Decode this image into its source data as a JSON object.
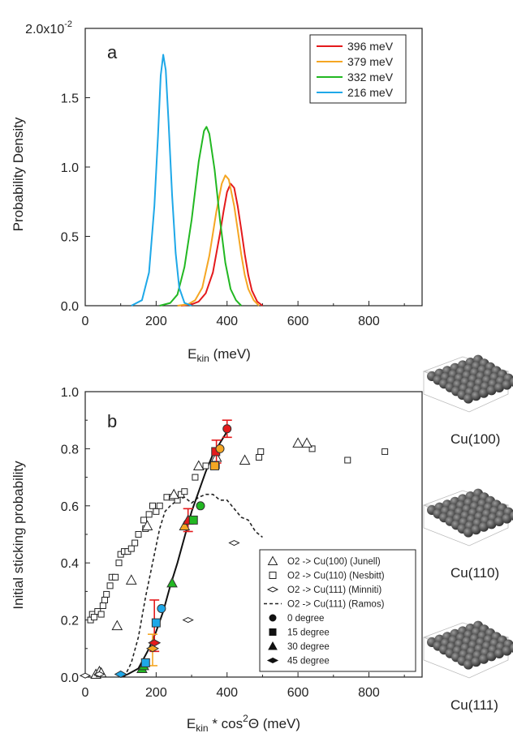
{
  "chart_data": [
    {
      "type": "line",
      "panel_label": "a",
      "xlabel_main": "E",
      "xlabel_sub": "kin",
      "xlabel_unit": " (meV)",
      "ylabel": "Probability Density",
      "xlim": [
        0,
        950
      ],
      "ylim": [
        0,
        0.02
      ],
      "x_ticks": [
        0,
        200,
        400,
        600,
        800
      ],
      "x_tick_labels": [
        "0",
        "200",
        "400",
        "600",
        "800"
      ],
      "y_ticks": [
        0,
        0.005,
        0.01,
        0.015,
        0.02
      ],
      "y_tick_labels": [
        "0.0",
        "0.5",
        "1.0",
        "1.5",
        "2.0x10"
      ],
      "y_top_exponent": "-2",
      "legend_position": "top-right",
      "series": [
        {
          "name": "396 meV",
          "color": "#e41a1c",
          "points": [
            [
              270,
              0
            ],
            [
              300,
              0.0001
            ],
            [
              320,
              0.0003
            ],
            [
              340,
              0.0009
            ],
            [
              360,
              0.0024
            ],
            [
              380,
              0.0052
            ],
            [
              390,
              0.0068
            ],
            [
              400,
              0.0082
            ],
            [
              410,
              0.0088
            ],
            [
              420,
              0.0085
            ],
            [
              430,
              0.0072
            ],
            [
              440,
              0.0055
            ],
            [
              450,
              0.0037
            ],
            [
              460,
              0.0022
            ],
            [
              470,
              0.0011
            ],
            [
              485,
              0.0003
            ],
            [
              500,
              0
            ]
          ]
        },
        {
          "name": "379 meV",
          "color": "#f5a623",
          "points": [
            [
              260,
              0
            ],
            [
              290,
              0.0001
            ],
            [
              310,
              0.0004
            ],
            [
              330,
              0.0013
            ],
            [
              350,
              0.0036
            ],
            [
              370,
              0.0068
            ],
            [
              385,
              0.0088
            ],
            [
              395,
              0.0094
            ],
            [
              405,
              0.0091
            ],
            [
              420,
              0.0072
            ],
            [
              430,
              0.0055
            ],
            [
              440,
              0.0037
            ],
            [
              450,
              0.0022
            ],
            [
              460,
              0.0012
            ],
            [
              475,
              0.0004
            ],
            [
              490,
              0
            ]
          ]
        },
        {
          "name": "332 meV",
          "color": "#22b822",
          "points": [
            [
              210,
              0
            ],
            [
              240,
              0.0002
            ],
            [
              260,
              0.0008
            ],
            [
              280,
              0.0028
            ],
            [
              300,
              0.0062
            ],
            [
              320,
              0.0104
            ],
            [
              335,
              0.0126
            ],
            [
              342,
              0.0129
            ],
            [
              350,
              0.0124
            ],
            [
              365,
              0.0098
            ],
            [
              380,
              0.0062
            ],
            [
              395,
              0.0031
            ],
            [
              410,
              0.0012
            ],
            [
              425,
              0.0004
            ],
            [
              440,
              0
            ]
          ]
        },
        {
          "name": "216 meV",
          "color": "#1ea8e8",
          "points": [
            [
              130,
              0
            ],
            [
              160,
              0.0004
            ],
            [
              180,
              0.0024
            ],
            [
              195,
              0.0072
            ],
            [
              205,
              0.0122
            ],
            [
              213,
              0.0166
            ],
            [
              220,
              0.0181
            ],
            [
              227,
              0.017
            ],
            [
              235,
              0.0132
            ],
            [
              245,
              0.008
            ],
            [
              255,
              0.0038
            ],
            [
              265,
              0.0013
            ],
            [
              280,
              0.0002
            ],
            [
              300,
              0
            ]
          ]
        }
      ]
    },
    {
      "type": "scatter",
      "panel_label": "b",
      "xlabel_main": "E",
      "xlabel_sub": "kin",
      "xlabel_mid": " * cos",
      "xlabel_sup": "2",
      "xlabel_end": "Θ   (meV)",
      "ylabel": "Initial sticking probability",
      "xlim": [
        0,
        950
      ],
      "ylim": [
        0,
        1.0
      ],
      "x_ticks": [
        0,
        200,
        400,
        600,
        800
      ],
      "x_tick_labels": [
        "0",
        "200",
        "400",
        "600",
        "800"
      ],
      "y_ticks": [
        0,
        0.2,
        0.4,
        0.6,
        0.8,
        1.0
      ],
      "y_tick_labels": [
        "0.0",
        "0.2",
        "0.4",
        "0.6",
        "0.8",
        "1.0"
      ],
      "legend_position": "bottom-right",
      "legend": [
        {
          "symbol": "open-triangle",
          "text": "O2 -> Cu(100) (Junell)"
        },
        {
          "symbol": "open-square",
          "text": "O2 -> Cu(110) (Nesbitt)"
        },
        {
          "symbol": "open-diamond",
          "text": "O2 -> Cu(111) (Minniti)"
        },
        {
          "symbol": "dashed-line",
          "text": "O2 -> Cu(111) (Ramos)"
        },
        {
          "symbol": "filled-circle",
          "text": "0 degree"
        },
        {
          "symbol": "filled-square",
          "text": "15 degree"
        },
        {
          "symbol": "filled-triangle",
          "text": "30 degree"
        },
        {
          "symbol": "filled-diamond",
          "text": "45 degree"
        }
      ],
      "junell_triangles": [
        [
          30,
          0.01
        ],
        [
          40,
          0.02
        ],
        [
          45,
          0.015
        ],
        [
          90,
          0.18
        ],
        [
          130,
          0.34
        ],
        [
          175,
          0.53
        ],
        [
          250,
          0.64
        ],
        [
          320,
          0.74
        ],
        [
          370,
          0.77
        ],
        [
          450,
          0.76
        ],
        [
          600,
          0.82
        ],
        [
          625,
          0.82
        ]
      ],
      "nesbitt_squares": [
        [
          15,
          0.2
        ],
        [
          20,
          0.22
        ],
        [
          25,
          0.21
        ],
        [
          35,
          0.23
        ],
        [
          45,
          0.22
        ],
        [
          50,
          0.25
        ],
        [
          55,
          0.27
        ],
        [
          60,
          0.29
        ],
        [
          70,
          0.32
        ],
        [
          75,
          0.35
        ],
        [
          85,
          0.35
        ],
        [
          95,
          0.4
        ],
        [
          100,
          0.43
        ],
        [
          110,
          0.44
        ],
        [
          120,
          0.44
        ],
        [
          130,
          0.45
        ],
        [
          140,
          0.47
        ],
        [
          150,
          0.5
        ],
        [
          165,
          0.55
        ],
        [
          170,
          0.52
        ],
        [
          180,
          0.57
        ],
        [
          190,
          0.6
        ],
        [
          200,
          0.58
        ],
        [
          210,
          0.6
        ],
        [
          230,
          0.63
        ],
        [
          245,
          0.63
        ],
        [
          260,
          0.62
        ],
        [
          270,
          0.64
        ],
        [
          280,
          0.65
        ],
        [
          310,
          0.7
        ],
        [
          340,
          0.74
        ],
        [
          370,
          0.74
        ],
        [
          490,
          0.77
        ],
        [
          495,
          0.79
        ],
        [
          640,
          0.8
        ],
        [
          740,
          0.76
        ],
        [
          845,
          0.79
        ]
      ],
      "minniti_diamonds": [
        [
          0,
          0.005
        ],
        [
          40,
          0.01
        ],
        [
          290,
          0.2
        ],
        [
          420,
          0.47
        ]
      ],
      "ramos_dashed": [
        [
          110,
          0
        ],
        [
          130,
          0.05
        ],
        [
          150,
          0.14
        ],
        [
          170,
          0.28
        ],
        [
          190,
          0.4
        ],
        [
          210,
          0.52
        ],
        [
          225,
          0.58
        ],
        [
          240,
          0.6
        ],
        [
          260,
          0.62
        ],
        [
          280,
          0.63
        ],
        [
          300,
          0.61
        ],
        [
          320,
          0.63
        ],
        [
          340,
          0.64
        ],
        [
          360,
          0.64
        ],
        [
          380,
          0.62
        ],
        [
          400,
          0.62
        ],
        [
          420,
          0.59
        ],
        [
          440,
          0.56
        ],
        [
          460,
          0.55
        ],
        [
          480,
          0.51
        ],
        [
          500,
          0.49
        ]
      ],
      "fit_line": [
        [
          100,
          0
        ],
        [
          120,
          0.01
        ],
        [
          150,
          0.03
        ],
        [
          180,
          0.1
        ],
        [
          200,
          0.16
        ],
        [
          220,
          0.23
        ],
        [
          240,
          0.32
        ],
        [
          260,
          0.4
        ],
        [
          280,
          0.49
        ],
        [
          300,
          0.58
        ],
        [
          320,
          0.65
        ],
        [
          340,
          0.72
        ],
        [
          360,
          0.78
        ],
        [
          380,
          0.82
        ],
        [
          400,
          0.86
        ]
      ],
      "colored_points": [
        {
          "x": 100,
          "y": 0.01,
          "symbol": "diamond",
          "color": "#1ea8e8"
        },
        {
          "x": 160,
          "y": 0.03,
          "symbol": "triangle",
          "color": "#22b822"
        },
        {
          "x": 165,
          "y": 0.04,
          "symbol": "triangle",
          "color": "#22b822"
        },
        {
          "x": 170,
          "y": 0.05,
          "symbol": "square",
          "color": "#1ea8e8"
        },
        {
          "x": 190,
          "y": 0.1,
          "symbol": "diamond",
          "color": "#f5a623"
        },
        {
          "x": 195,
          "y": 0.12,
          "symbol": "diamond",
          "color": "#e41a1c"
        },
        {
          "x": 200,
          "y": 0.19,
          "symbol": "square",
          "color": "#1ea8e8"
        },
        {
          "x": 215,
          "y": 0.24,
          "symbol": "circle",
          "color": "#1ea8e8"
        },
        {
          "x": 245,
          "y": 0.33,
          "symbol": "triangle",
          "color": "#22b822"
        },
        {
          "x": 280,
          "y": 0.53,
          "symbol": "triangle",
          "color": "#f5a623"
        },
        {
          "x": 290,
          "y": 0.55,
          "symbol": "triangle",
          "color": "#e41a1c"
        },
        {
          "x": 305,
          "y": 0.55,
          "symbol": "square",
          "color": "#22b822"
        },
        {
          "x": 325,
          "y": 0.6,
          "symbol": "circle",
          "color": "#22b822"
        },
        {
          "x": 365,
          "y": 0.74,
          "symbol": "square",
          "color": "#f5a623"
        },
        {
          "x": 368,
          "y": 0.79,
          "symbol": "square",
          "color": "#e41a1c"
        },
        {
          "x": 380,
          "y": 0.8,
          "symbol": "circle",
          "color": "#f5a623"
        },
        {
          "x": 400,
          "y": 0.87,
          "symbol": "circle",
          "color": "#e41a1c"
        }
      ],
      "error_bars": [
        {
          "x": 195,
          "y": 0.19,
          "lo": 0.09,
          "hi": 0.27,
          "color": "#e41a1c"
        },
        {
          "x": 190,
          "y": 0.1,
          "lo": 0.04,
          "hi": 0.15,
          "color": "#f5a623"
        },
        {
          "x": 290,
          "y": 0.55,
          "lo": 0.51,
          "hi": 0.59,
          "color": "#e41a1c"
        },
        {
          "x": 370,
          "y": 0.79,
          "lo": 0.75,
          "hi": 0.83,
          "color": "#e41a1c"
        },
        {
          "x": 400,
          "y": 0.87,
          "lo": 0.84,
          "hi": 0.9,
          "color": "#e41a1c"
        }
      ]
    }
  ],
  "clusters": [
    {
      "label": "Cu(100)"
    },
    {
      "label": "Cu(110)"
    },
    {
      "label": "Cu(111)"
    }
  ]
}
